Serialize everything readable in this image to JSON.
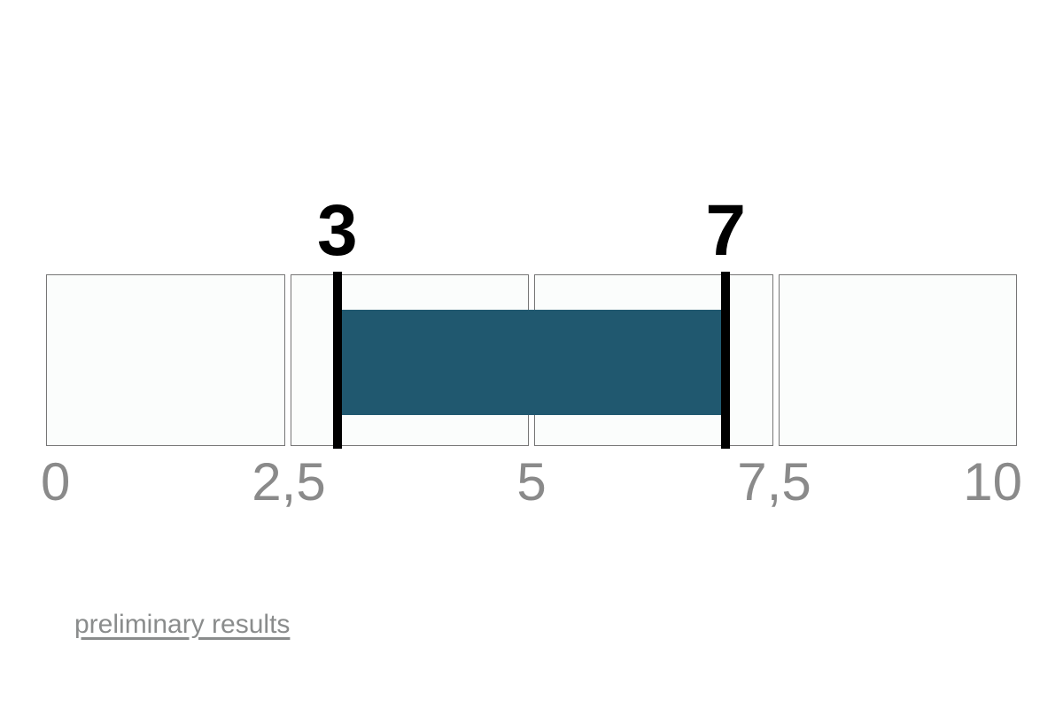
{
  "chart_data": {
    "type": "bar",
    "subtype": "horizontal-range-indicator",
    "title": "",
    "xlabel": "",
    "ylabel": "",
    "grid": false,
    "legend_position": "none",
    "axis": {
      "min": 0,
      "max": 10,
      "tick_values": [
        0,
        2.5,
        5,
        7.5,
        10
      ],
      "tick_labels": [
        "0",
        "2,5",
        "5",
        "7,5",
        "10"
      ]
    },
    "segments": [
      {
        "from": 0,
        "to": 2.5
      },
      {
        "from": 2.5,
        "to": 5
      },
      {
        "from": 5,
        "to": 7.5
      },
      {
        "from": 7.5,
        "to": 10
      }
    ],
    "range": {
      "start": 3,
      "end": 7,
      "start_label": "3",
      "end_label": "7"
    },
    "colors": {
      "range_bar": "#20586f",
      "marker": "#000000",
      "segment_fill": "#fbfdfc",
      "segment_border": "#767676",
      "tick_text": "#8a8a8a",
      "value_label_text": "#000000",
      "link_text": "#8a8c8c",
      "page_background": "#ffffff"
    }
  },
  "footer": {
    "link_text": "preliminary results"
  }
}
